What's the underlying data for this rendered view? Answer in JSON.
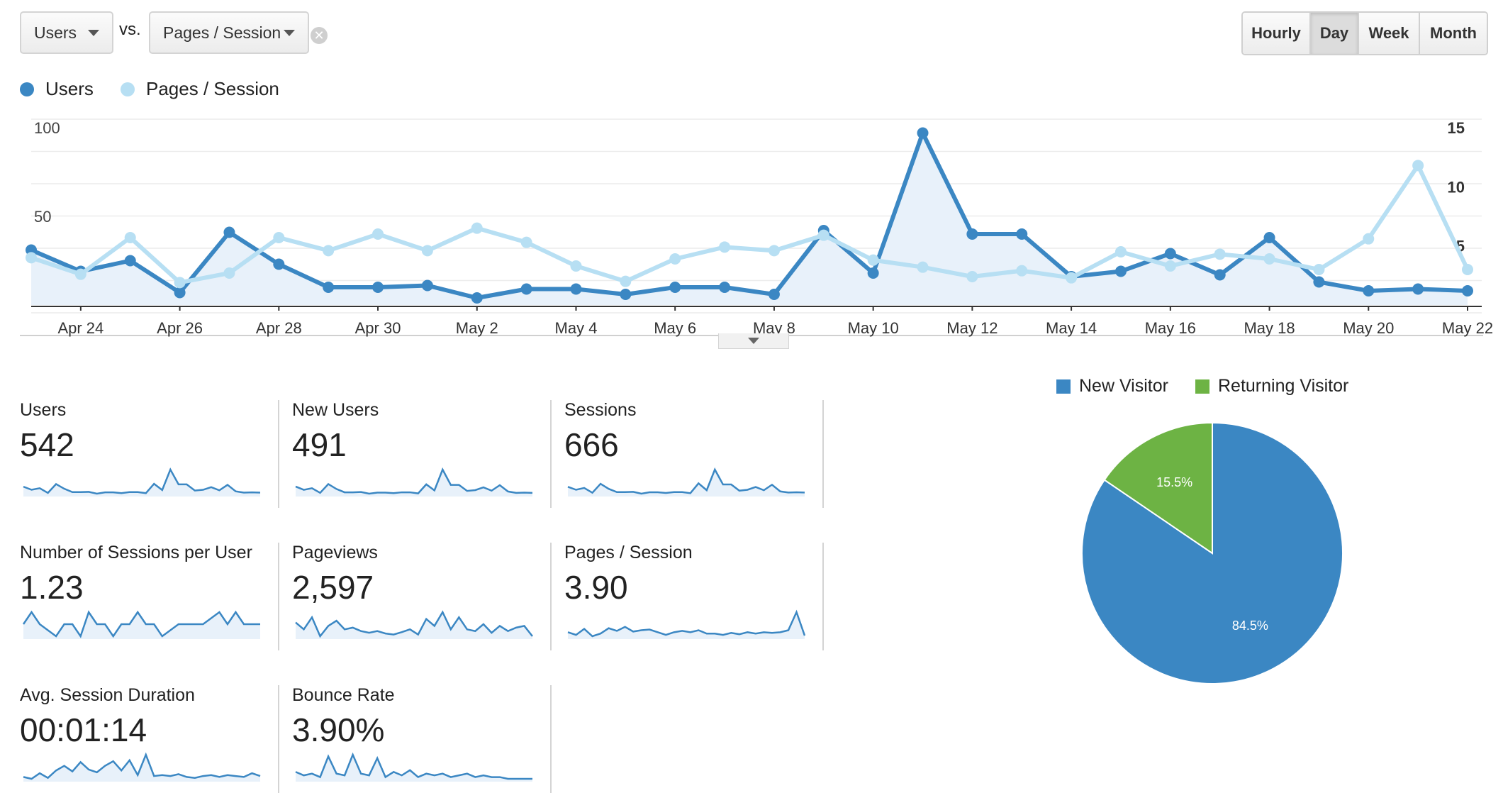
{
  "controls": {
    "metric1": "Users",
    "vs": "vs.",
    "metric2": "Pages / Session",
    "clear_icon": "✕",
    "periods": [
      "Hourly",
      "Day",
      "Week",
      "Month"
    ],
    "active_period": "Day"
  },
  "colors": {
    "users": "#3b87c3",
    "pages": "#b7dff3",
    "new_visitor": "#3b87c3",
    "returning_visitor": "#6db344",
    "card_line": "#3b87c3"
  },
  "chart_data": [
    {
      "type": "line",
      "dual_axis": true,
      "legend": [
        "Users",
        "Pages / Session"
      ],
      "x_tick_labels": [
        "Apr 24",
        "Apr 26",
        "Apr 28",
        "Apr 30",
        "May 2",
        "May 4",
        "May 6",
        "May 8",
        "May 10",
        "May 12",
        "May 14",
        "May 16",
        "May 18",
        "May 20",
        "May 22"
      ],
      "y_left_ticks": [
        "100",
        "50"
      ],
      "y_left_range": [
        0,
        100
      ],
      "y_right_ticks": [
        "15",
        "10",
        "5"
      ],
      "y_right_range": [
        0,
        15
      ],
      "series": [
        {
          "name": "Users",
          "axis": "left",
          "values": [
            31,
            19,
            25,
            7,
            41,
            23,
            10,
            10,
            11,
            4,
            9,
            9,
            6,
            10,
            10,
            6,
            42,
            18,
            97,
            40,
            40,
            16,
            19,
            29,
            17,
            38,
            13,
            8,
            9,
            8
          ]
        },
        {
          "name": "Pages / Session",
          "axis": "right",
          "values": [
            4.0,
            2.6,
            5.7,
            1.9,
            2.7,
            5.7,
            4.6,
            6.0,
            4.6,
            6.5,
            5.3,
            3.3,
            2.0,
            3.9,
            4.9,
            4.6,
            5.9,
            3.8,
            3.2,
            2.4,
            2.9,
            2.3,
            4.5,
            3.3,
            4.3,
            3.9,
            3.0,
            5.6,
            11.8,
            3.0
          ]
        }
      ]
    },
    {
      "type": "pie",
      "legend": [
        "New Visitor",
        "Returning Visitor"
      ],
      "slices": [
        {
          "name": "New Visitor",
          "value": 84.5,
          "label": "84.5%"
        },
        {
          "name": "Returning Visitor",
          "value": 15.5,
          "label": "15.5%"
        }
      ]
    }
  ],
  "cards": [
    {
      "label": "Users",
      "value": "542",
      "spark": [
        31,
        19,
        25,
        7,
        41,
        23,
        10,
        10,
        11,
        4,
        9,
        9,
        6,
        10,
        10,
        6,
        42,
        18,
        97,
        40,
        40,
        16,
        19,
        29,
        17,
        38,
        13,
        8,
        9,
        8
      ]
    },
    {
      "label": "New Users",
      "value": "491",
      "spark": [
        30,
        18,
        24,
        7,
        39,
        21,
        9,
        9,
        10,
        4,
        8,
        8,
        6,
        9,
        9,
        5,
        38,
        16,
        92,
        36,
        36,
        14,
        17,
        27,
        15,
        35,
        12,
        7,
        8,
        7
      ]
    },
    {
      "label": "Sessions",
      "value": "666",
      "spark": [
        35,
        22,
        30,
        9,
        48,
        26,
        12,
        12,
        13,
        5,
        11,
        11,
        8,
        12,
        12,
        7,
        50,
        20,
        110,
        45,
        45,
        18,
        22,
        34,
        20,
        44,
        15,
        10,
        11,
        10
      ]
    },
    {
      "label": "Number of Sessions per User",
      "value": "1.23",
      "spark": [
        1.2,
        1.3,
        1.2,
        1.15,
        1.1,
        1.2,
        1.2,
        1.1,
        1.3,
        1.2,
        1.2,
        1.1,
        1.2,
        1.2,
        1.3,
        1.2,
        1.2,
        1.1,
        1.15,
        1.2,
        1.2,
        1.2,
        1.2,
        1.25,
        1.3,
        1.2,
        1.3,
        1.2,
        1.2,
        1.2
      ]
    },
    {
      "label": "Pageviews",
      "value": "2,597",
      "spark": [
        80,
        60,
        95,
        40,
        70,
        85,
        60,
        65,
        55,
        50,
        55,
        48,
        45,
        52,
        60,
        45,
        90,
        70,
        110,
        60,
        95,
        60,
        55,
        75,
        50,
        70,
        55,
        65,
        70,
        40
      ]
    },
    {
      "label": "Pages / Session",
      "value": "3.90",
      "spark": [
        4.0,
        3.6,
        4.5,
        3.4,
        3.8,
        4.6,
        4.2,
        4.8,
        4.1,
        4.3,
        4.4,
        4.0,
        3.6,
        4.0,
        4.2,
        4.0,
        4.3,
        3.8,
        3.8,
        3.6,
        3.9,
        3.7,
        4.0,
        3.8,
        4.0,
        3.9,
        4.0,
        4.3,
        7.0,
        3.5
      ]
    },
    {
      "label": "Avg. Session Duration",
      "value": "00:01:14",
      "spark": [
        50,
        40,
        70,
        45,
        85,
        110,
        80,
        130,
        90,
        75,
        110,
        135,
        85,
        140,
        60,
        170,
        55,
        60,
        55,
        65,
        50,
        45,
        55,
        60,
        50,
        60,
        55,
        50,
        70,
        55
      ]
    },
    {
      "label": "Bounce Rate",
      "value": "3.90%",
      "spark": [
        5,
        3,
        4,
        2,
        14,
        4,
        3,
        15,
        4,
        3,
        13,
        2,
        5,
        3,
        6,
        2,
        4,
        3,
        4,
        2,
        3,
        4,
        2,
        3,
        2,
        2,
        1,
        1,
        1,
        1
      ]
    }
  ]
}
